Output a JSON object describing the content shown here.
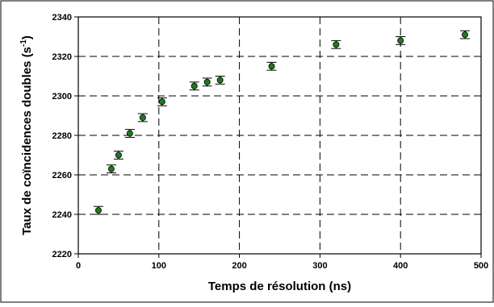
{
  "chart_data": {
    "type": "scatter",
    "xlabel": "Temps de résolution (ns)",
    "ylabel": "Taux de coïncidences doubles (s",
    "ylabel_superscript": "-1",
    "ylabel_suffix": ")",
    "xlim": [
      0,
      500
    ],
    "ylim": [
      2220,
      2340
    ],
    "xticks": [
      0,
      100,
      200,
      300,
      400,
      500
    ],
    "yticks": [
      2220,
      2240,
      2260,
      2280,
      2300,
      2320,
      2340
    ],
    "grid": true,
    "marker_color": "#1f7a1f",
    "series": [
      {
        "points": [
          {
            "x": 25,
            "y": 2242,
            "err": 2
          },
          {
            "x": 41,
            "y": 2263,
            "err": 2
          },
          {
            "x": 50,
            "y": 2270,
            "err": 2
          },
          {
            "x": 64,
            "y": 2281,
            "err": 2
          },
          {
            "x": 80,
            "y": 2289,
            "err": 2
          },
          {
            "x": 104,
            "y": 2297,
            "err": 2
          },
          {
            "x": 144,
            "y": 2305,
            "err": 2
          },
          {
            "x": 160,
            "y": 2307,
            "err": 2
          },
          {
            "x": 176,
            "y": 2308,
            "err": 2
          },
          {
            "x": 240,
            "y": 2315,
            "err": 2
          },
          {
            "x": 320,
            "y": 2326,
            "err": 2
          },
          {
            "x": 400,
            "y": 2328,
            "err": 2
          },
          {
            "x": 480,
            "y": 2331,
            "err": 2
          }
        ]
      }
    ]
  }
}
